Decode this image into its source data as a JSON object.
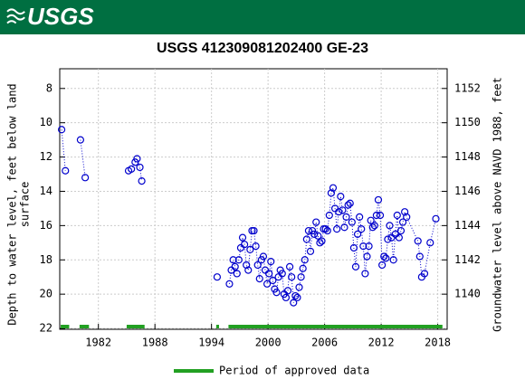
{
  "header": {
    "logo_text": "USGS"
  },
  "chart_data": {
    "type": "scatter",
    "title": "USGS 412309081202400 GE-23",
    "ylabel_lines": [
      "Depth to water level, feet below land",
      "surface"
    ],
    "y2label": "Groundwater level above NAVD 1988, feet",
    "xlim": [
      1977.9,
      2019.0
    ],
    "xticks": [
      1982,
      1988,
      1994,
      2000,
      2006,
      2012,
      2018
    ],
    "ylim": [
      22.05,
      6.85
    ],
    "yticks": [
      8,
      10,
      12,
      14,
      16,
      18,
      20,
      22
    ],
    "y2lim": [
      1137.95,
      1153.15
    ],
    "y2ticks": [
      1140,
      1142,
      1144,
      1146,
      1148,
      1150,
      1152
    ],
    "grid": true,
    "series": [
      {
        "name": "Depth to water level",
        "color": "#0000cc",
        "x": [
          1978.1,
          1978.5,
          1979.3,
          1980.1,
          1980.6,
          1983.0,
          1985.2,
          1985.5,
          1985.9,
          1986.1,
          1986.4,
          1986.6,
          1990.0,
          1994.6,
          1995.3,
          1995.9,
          1996.1,
          1996.3,
          1996.5,
          1996.7,
          1996.9,
          1997.1,
          1997.3,
          1997.5,
          1997.7,
          1997.9,
          1998.1,
          1998.3,
          1998.5,
          1998.7,
          1998.9,
          1999.1,
          1999.3,
          1999.5,
          1999.7,
          1999.9,
          2000.1,
          2000.3,
          2000.5,
          2000.7,
          2000.9,
          2001.1,
          2001.3,
          2001.5,
          2001.7,
          2001.9,
          2002.1,
          2002.3,
          2002.5,
          2002.7,
          2002.9,
          2003.1,
          2003.3,
          2003.5,
          2003.7,
          2003.9,
          2004.1,
          2004.3,
          2004.5,
          2004.7,
          2004.9,
          2005.1,
          2005.3,
          2005.5,
          2005.7,
          2005.9,
          2006.1,
          2006.3,
          2006.5,
          2006.7,
          2006.9,
          2007.1,
          2007.3,
          2007.5,
          2007.7,
          2007.9,
          2008.1,
          2008.3,
          2008.5,
          2008.7,
          2008.9,
          2009.1,
          2009.3,
          2009.5,
          2009.7,
          2009.9,
          2010.1,
          2010.3,
          2010.5,
          2010.7,
          2010.9,
          2011.1,
          2011.3,
          2011.5,
          2011.7,
          2011.9,
          2012.1,
          2012.3,
          2012.5,
          2012.7,
          2012.9,
          2013.1,
          2013.3,
          2013.5,
          2013.7,
          2013.9,
          2014.1,
          2014.3,
          2014.5,
          2014.7,
          2015.9,
          2016.1,
          2016.3,
          2016.6,
          2017.2,
          2017.8
        ],
        "values": [
          10.4,
          12.8,
          null,
          11.0,
          13.2,
          null,
          12.8,
          12.7,
          12.3,
          12.1,
          12.6,
          13.4,
          null,
          19.0,
          null,
          19.4,
          18.6,
          18.0,
          18.4,
          18.8,
          18.0,
          17.3,
          16.7,
          17.1,
          18.3,
          18.6,
          17.4,
          16.3,
          16.3,
          17.2,
          18.3,
          19.1,
          18.0,
          17.8,
          18.6,
          19.4,
          18.8,
          18.1,
          19.2,
          19.7,
          19.9,
          19.0,
          18.6,
          18.8,
          20.0,
          20.2,
          19.8,
          18.4,
          19.0,
          20.5,
          20.1,
          20.2,
          19.6,
          19.0,
          18.5,
          18.0,
          16.8,
          16.3,
          17.5,
          16.3,
          16.5,
          15.8,
          16.6,
          17.0,
          16.9,
          16.2,
          16.2,
          16.3,
          15.4,
          14.1,
          13.8,
          15.0,
          16.2,
          15.2,
          14.3,
          15.1,
          16.1,
          15.5,
          14.8,
          14.7,
          15.8,
          17.3,
          18.4,
          16.5,
          15.5,
          16.2,
          17.2,
          18.8,
          17.8,
          17.2,
          15.7,
          16.1,
          16.0,
          15.4,
          14.5,
          15.4,
          18.3,
          17.8,
          17.9,
          16.8,
          16.0,
          16.7,
          18.0,
          16.5,
          15.4,
          16.7,
          16.3,
          15.8,
          15.2,
          15.5,
          16.9,
          17.8,
          19.0,
          18.8,
          17.0,
          15.6
        ]
      }
    ],
    "approved_label": "Period of approved data",
    "approved_color": "#22a022",
    "approved_periods": [
      [
        1978.0,
        1978.9
      ],
      [
        1980.0,
        1981.0
      ],
      [
        1985.0,
        1986.9
      ],
      [
        1994.5,
        1994.8
      ],
      [
        1995.8,
        2018.5
      ]
    ]
  }
}
